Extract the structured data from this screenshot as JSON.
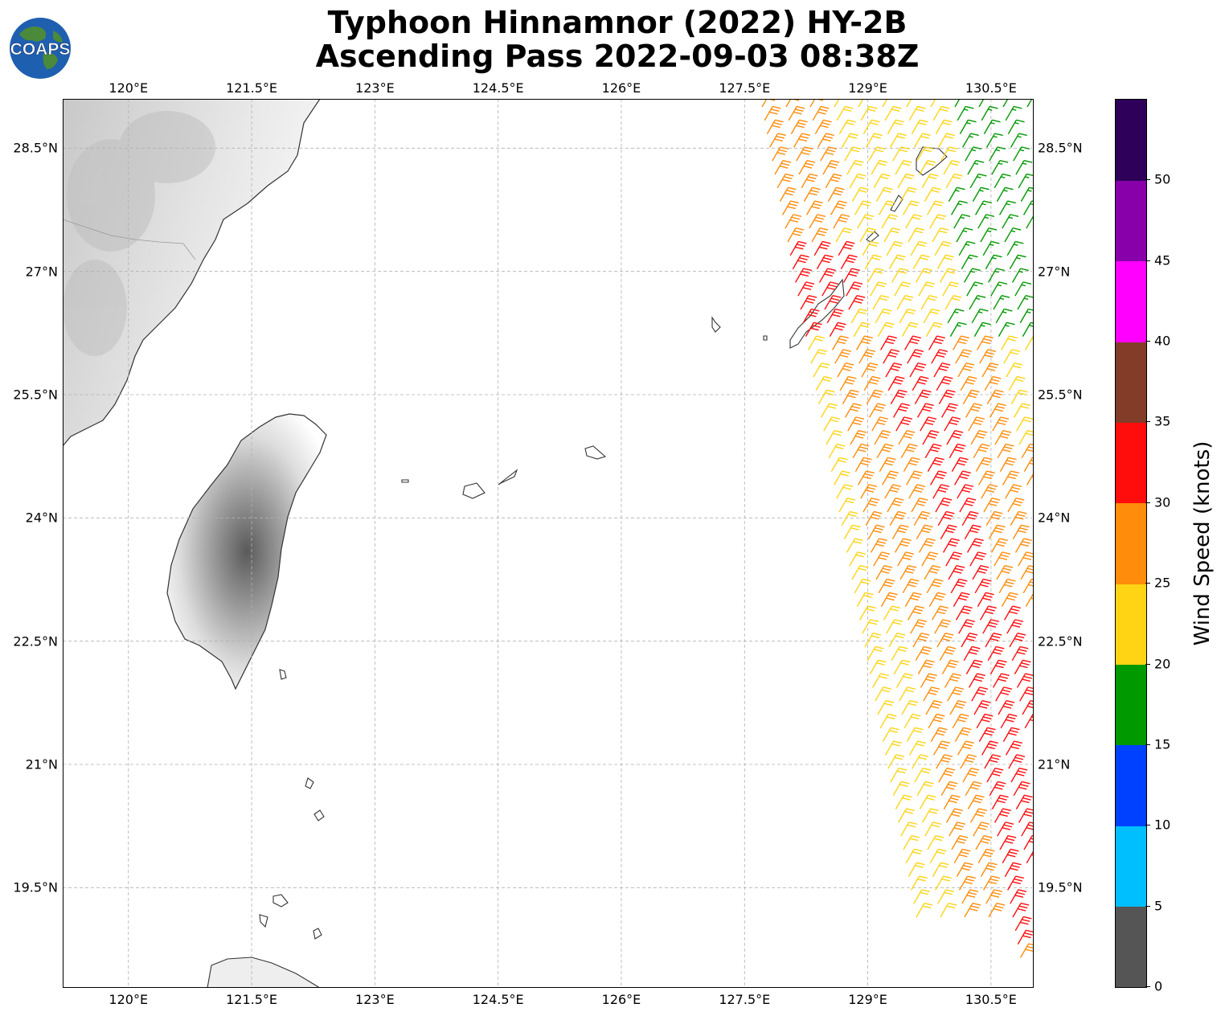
{
  "header": {
    "title_line1": "Typhoon Hinnamnor (2022) HY-2B",
    "title_line2": "Ascending Pass 2022-09-03 08:38Z"
  },
  "logo": {
    "text": "COAPS",
    "ocean_color": "#1f5fb0",
    "land_color": "#4a8a3a"
  },
  "map": {
    "lon_range": [
      119.2,
      131.0
    ],
    "lat_range": [
      18.3,
      29.1
    ],
    "lon_ticks": [
      "120°E",
      "121.5°E",
      "123°E",
      "124.5°E",
      "126°E",
      "127.5°E",
      "129°E",
      "130.5°E"
    ],
    "lon_tick_values": [
      120,
      121.5,
      123,
      124.5,
      126,
      127.5,
      129,
      130.5
    ],
    "lat_ticks": [
      "28.5°N",
      "27°N",
      "25.5°N",
      "24°N",
      "22.5°N",
      "21°N",
      "19.5°N"
    ],
    "lat_tick_values": [
      28.5,
      27,
      25.5,
      24,
      22.5,
      21,
      19.5
    ],
    "grid": true,
    "coast_color": "#333333",
    "grid_color": "#b0b0b0"
  },
  "colorbar": {
    "title": "Wind Speed (knots)",
    "ticks": [
      "0",
      "5",
      "10",
      "15",
      "20",
      "25",
      "30",
      "35",
      "40",
      "45",
      "50"
    ],
    "bins": [
      {
        "from": 0,
        "to": 5,
        "color": "#555555"
      },
      {
        "from": 5,
        "to": 10,
        "color": "#00bfff"
      },
      {
        "from": 10,
        "to": 15,
        "color": "#0040ff"
      },
      {
        "from": 15,
        "to": 20,
        "color": "#009900"
      },
      {
        "from": 20,
        "to": 25,
        "color": "#ffd414"
      },
      {
        "from": 25,
        "to": 30,
        "color": "#ff8c0a"
      },
      {
        "from": 30,
        "to": 35,
        "color": "#ff0d0d"
      },
      {
        "from": 35,
        "to": 40,
        "color": "#823c28"
      },
      {
        "from": 40,
        "to": 45,
        "color": "#ff00ff"
      },
      {
        "from": 45,
        "to": 50,
        "color": "#8800aa"
      },
      {
        "from": 50,
        "to": 55,
        "color": "#2e005a"
      }
    ]
  },
  "wind_barbs": {
    "direction_deg": 30
  }
}
